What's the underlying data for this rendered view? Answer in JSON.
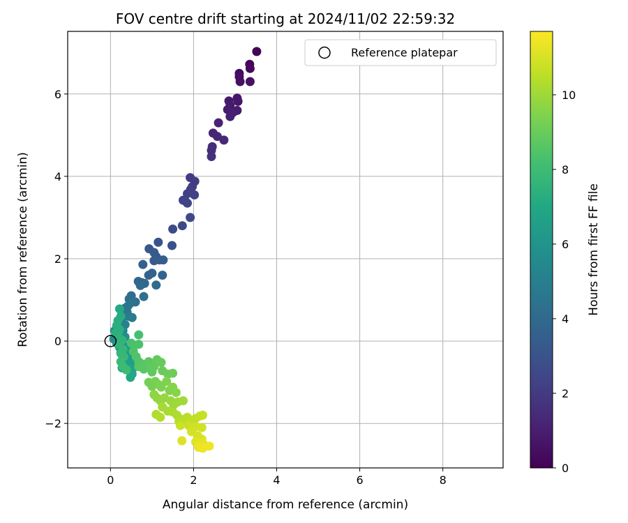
{
  "chart_data": {
    "type": "scatter",
    "title": "FOV centre drift starting at 2024/11/02 22:59:32",
    "xlabel": "Angular distance from reference (arcmin)",
    "ylabel": "Rotation from reference (arcmin)",
    "xlim": [
      -1.03,
      9.45
    ],
    "ylim": [
      -3.08,
      7.52
    ],
    "xticks": [
      0,
      2,
      4,
      6,
      8
    ],
    "yticks": [
      -2,
      0,
      2,
      4,
      6
    ],
    "xtick_labels": [
      "0",
      "2",
      "4",
      "6",
      "8"
    ],
    "ytick_labels": [
      "−2",
      "0",
      "2",
      "4",
      "6"
    ],
    "grid": true,
    "legend": {
      "position": "top-right",
      "entries": [
        "Reference platepar"
      ]
    },
    "reference_point": {
      "label": "Reference platepar",
      "x": 0,
      "y": 0,
      "marker": "open-circle"
    },
    "colorbar": {
      "label": "Hours from first FF file",
      "colormap": "viridis",
      "range": [
        0,
        11.7
      ],
      "ticks": [
        0,
        2,
        4,
        6,
        8,
        10
      ],
      "tick_labels": [
        "0",
        "2",
        "4",
        "6",
        "8",
        "10"
      ]
    },
    "points": [
      {
        "x": 3.52,
        "y": 7.03,
        "h": 0.1
      },
      {
        "x": 3.35,
        "y": 6.72,
        "h": 0.2
      },
      {
        "x": 3.36,
        "y": 6.62,
        "h": 0.3
      },
      {
        "x": 3.1,
        "y": 6.5,
        "h": 0.35
      },
      {
        "x": 3.1,
        "y": 6.42,
        "h": 0.45
      },
      {
        "x": 3.12,
        "y": 6.3,
        "h": 0.5
      },
      {
        "x": 3.36,
        "y": 6.3,
        "h": 0.55
      },
      {
        "x": 3.05,
        "y": 5.9,
        "h": 0.7
      },
      {
        "x": 3.07,
        "y": 5.82,
        "h": 0.75
      },
      {
        "x": 2.85,
        "y": 5.83,
        "h": 0.8
      },
      {
        "x": 2.88,
        "y": 5.72,
        "h": 0.85
      },
      {
        "x": 2.82,
        "y": 5.62,
        "h": 0.9
      },
      {
        "x": 3.05,
        "y": 5.6,
        "h": 0.95
      },
      {
        "x": 2.95,
        "y": 5.55,
        "h": 1.0
      },
      {
        "x": 2.88,
        "y": 5.45,
        "h": 1.05
      },
      {
        "x": 2.6,
        "y": 5.3,
        "h": 1.15
      },
      {
        "x": 2.47,
        "y": 5.05,
        "h": 1.25
      },
      {
        "x": 2.57,
        "y": 4.97,
        "h": 1.3
      },
      {
        "x": 2.73,
        "y": 4.88,
        "h": 1.35
      },
      {
        "x": 2.45,
        "y": 4.72,
        "h": 1.45
      },
      {
        "x": 2.43,
        "y": 4.63,
        "h": 1.5
      },
      {
        "x": 2.43,
        "y": 4.48,
        "h": 1.6
      },
      {
        "x": 1.92,
        "y": 3.97,
        "h": 2.0
      },
      {
        "x": 2.03,
        "y": 3.88,
        "h": 2.05
      },
      {
        "x": 1.97,
        "y": 3.75,
        "h": 2.1
      },
      {
        "x": 1.93,
        "y": 3.68,
        "h": 2.15
      },
      {
        "x": 1.85,
        "y": 3.58,
        "h": 2.2
      },
      {
        "x": 2.02,
        "y": 3.55,
        "h": 2.25
      },
      {
        "x": 1.75,
        "y": 3.42,
        "h": 2.3
      },
      {
        "x": 1.8,
        "y": 3.4,
        "h": 2.35
      },
      {
        "x": 1.85,
        "y": 3.35,
        "h": 2.4
      },
      {
        "x": 1.92,
        "y": 3.0,
        "h": 2.5
      },
      {
        "x": 1.73,
        "y": 2.8,
        "h": 2.6
      },
      {
        "x": 1.5,
        "y": 2.72,
        "h": 2.7
      },
      {
        "x": 1.48,
        "y": 2.32,
        "h": 2.9
      },
      {
        "x": 1.15,
        "y": 2.4,
        "h": 3.0
      },
      {
        "x": 0.93,
        "y": 2.24,
        "h": 3.2
      },
      {
        "x": 1.05,
        "y": 2.15,
        "h": 3.25
      },
      {
        "x": 1.1,
        "y": 2.05,
        "h": 3.3
      },
      {
        "x": 1.05,
        "y": 1.95,
        "h": 3.35
      },
      {
        "x": 1.18,
        "y": 1.97,
        "h": 3.4
      },
      {
        "x": 1.27,
        "y": 1.97,
        "h": 3.45
      },
      {
        "x": 0.78,
        "y": 1.86,
        "h": 3.55
      },
      {
        "x": 1.0,
        "y": 1.65,
        "h": 3.65
      },
      {
        "x": 0.92,
        "y": 1.6,
        "h": 3.7
      },
      {
        "x": 1.25,
        "y": 1.6,
        "h": 3.75
      },
      {
        "x": 0.67,
        "y": 1.45,
        "h": 3.85
      },
      {
        "x": 0.75,
        "y": 1.42,
        "h": 3.9
      },
      {
        "x": 0.82,
        "y": 1.4,
        "h": 3.95
      },
      {
        "x": 0.72,
        "y": 1.35,
        "h": 4.0
      },
      {
        "x": 1.1,
        "y": 1.36,
        "h": 4.05
      },
      {
        "x": 0.5,
        "y": 1.1,
        "h": 4.2
      },
      {
        "x": 0.45,
        "y": 1.02,
        "h": 4.25
      },
      {
        "x": 0.8,
        "y": 1.08,
        "h": 4.3
      },
      {
        "x": 0.6,
        "y": 0.95,
        "h": 4.35
      },
      {
        "x": 0.48,
        "y": 0.92,
        "h": 4.4
      },
      {
        "x": 0.42,
        "y": 0.85,
        "h": 4.5
      },
      {
        "x": 0.35,
        "y": 0.8,
        "h": 4.55
      },
      {
        "x": 0.4,
        "y": 0.7,
        "h": 4.6
      },
      {
        "x": 0.27,
        "y": 0.72,
        "h": 4.65
      },
      {
        "x": 0.32,
        "y": 0.65,
        "h": 4.7
      },
      {
        "x": 0.45,
        "y": 0.6,
        "h": 4.75
      },
      {
        "x": 0.3,
        "y": 0.58,
        "h": 4.8
      },
      {
        "x": 0.52,
        "y": 0.57,
        "h": 4.85
      },
      {
        "x": 0.22,
        "y": 0.5,
        "h": 4.95
      },
      {
        "x": 0.2,
        "y": 0.42,
        "h": 5.0
      },
      {
        "x": 0.35,
        "y": 0.4,
        "h": 5.05
      },
      {
        "x": 0.25,
        "y": 0.36,
        "h": 5.1
      },
      {
        "x": 0.15,
        "y": 0.3,
        "h": 5.2
      },
      {
        "x": 0.1,
        "y": 0.25,
        "h": 5.3
      },
      {
        "x": 0.3,
        "y": 0.25,
        "h": 5.35
      },
      {
        "x": 0.2,
        "y": 0.18,
        "h": 5.45
      },
      {
        "x": 0.12,
        "y": 0.12,
        "h": 5.55
      },
      {
        "x": 0.08,
        "y": 0.05,
        "h": 5.65
      },
      {
        "x": 0.25,
        "y": 0.08,
        "h": 5.7
      },
      {
        "x": 0.35,
        "y": 0.1,
        "h": 5.75
      },
      {
        "x": 0.15,
        "y": -0.05,
        "h": 5.85
      },
      {
        "x": 0.3,
        "y": -0.08,
        "h": 5.9
      },
      {
        "x": 0.22,
        "y": -0.15,
        "h": 6.0
      },
      {
        "x": 0.4,
        "y": -0.18,
        "h": 6.05
      },
      {
        "x": 0.25,
        "y": -0.28,
        "h": 6.15
      },
      {
        "x": 0.35,
        "y": -0.32,
        "h": 6.2
      },
      {
        "x": 0.45,
        "y": -0.35,
        "h": 6.25
      },
      {
        "x": 0.3,
        "y": -0.42,
        "h": 6.35
      },
      {
        "x": 0.4,
        "y": -0.45,
        "h": 6.4
      },
      {
        "x": 0.5,
        "y": -0.48,
        "h": 6.45
      },
      {
        "x": 0.3,
        "y": -0.55,
        "h": 6.55
      },
      {
        "x": 0.42,
        "y": -0.6,
        "h": 6.6
      },
      {
        "x": 0.28,
        "y": -0.65,
        "h": 6.65
      },
      {
        "x": 0.55,
        "y": -0.65,
        "h": 6.7
      },
      {
        "x": 0.45,
        "y": -0.72,
        "h": 6.8
      },
      {
        "x": 0.52,
        "y": -0.8,
        "h": 6.9
      },
      {
        "x": 0.48,
        "y": -0.88,
        "h": 7.0
      },
      {
        "x": 0.22,
        "y": 0.78,
        "h": 7.1
      },
      {
        "x": 0.25,
        "y": 0.6,
        "h": 7.2
      },
      {
        "x": 0.18,
        "y": 0.5,
        "h": 7.25
      },
      {
        "x": 0.15,
        "y": 0.38,
        "h": 7.3
      },
      {
        "x": 0.22,
        "y": 0.28,
        "h": 7.35
      },
      {
        "x": 0.12,
        "y": 0.2,
        "h": 7.4
      },
      {
        "x": 0.18,
        "y": 0.15,
        "h": 7.45
      },
      {
        "x": 0.28,
        "y": 0.02,
        "h": 7.55
      },
      {
        "x": 0.2,
        "y": -0.08,
        "h": 7.6
      },
      {
        "x": 0.3,
        "y": -0.2,
        "h": 7.7
      },
      {
        "x": 0.25,
        "y": -0.3,
        "h": 7.75
      },
      {
        "x": 0.32,
        "y": -0.38,
        "h": 7.8
      },
      {
        "x": 0.25,
        "y": -0.5,
        "h": 7.9
      },
      {
        "x": 0.3,
        "y": -0.62,
        "h": 7.95
      },
      {
        "x": 0.38,
        "y": -0.7,
        "h": 8.0
      },
      {
        "x": 0.68,
        "y": 0.15,
        "h": 8.2
      },
      {
        "x": 0.5,
        "y": -0.05,
        "h": 8.25
      },
      {
        "x": 0.58,
        "y": -0.1,
        "h": 8.3
      },
      {
        "x": 0.68,
        "y": -0.08,
        "h": 8.35
      },
      {
        "x": 0.55,
        "y": -0.25,
        "h": 8.4
      },
      {
        "x": 0.62,
        "y": -0.38,
        "h": 8.45
      },
      {
        "x": 0.68,
        "y": -0.5,
        "h": 8.5
      },
      {
        "x": 0.75,
        "y": -0.55,
        "h": 8.55
      },
      {
        "x": 0.68,
        "y": -0.62,
        "h": 8.6
      },
      {
        "x": 0.8,
        "y": -0.68,
        "h": 8.65
      },
      {
        "x": 0.92,
        "y": -0.5,
        "h": 8.7
      },
      {
        "x": 0.95,
        "y": -0.6,
        "h": 8.75
      },
      {
        "x": 1.0,
        "y": -0.75,
        "h": 8.8
      },
      {
        "x": 1.05,
        "y": -0.62,
        "h": 8.85
      },
      {
        "x": 1.12,
        "y": -0.45,
        "h": 8.9
      },
      {
        "x": 1.22,
        "y": -0.52,
        "h": 8.95
      },
      {
        "x": 1.25,
        "y": -0.72,
        "h": 9.0
      },
      {
        "x": 1.38,
        "y": -0.8,
        "h": 9.05
      },
      {
        "x": 1.5,
        "y": -0.78,
        "h": 9.1
      },
      {
        "x": 0.92,
        "y": -1.0,
        "h": 9.2
      },
      {
        "x": 1.0,
        "y": -1.1,
        "h": 9.25
      },
      {
        "x": 1.08,
        "y": -0.98,
        "h": 9.3
      },
      {
        "x": 1.15,
        "y": -1.05,
        "h": 9.35
      },
      {
        "x": 1.22,
        "y": -1.12,
        "h": 9.4
      },
      {
        "x": 1.35,
        "y": -0.98,
        "h": 9.45
      },
      {
        "x": 1.42,
        "y": -1.2,
        "h": 9.5
      },
      {
        "x": 1.5,
        "y": -1.12,
        "h": 9.55
      },
      {
        "x": 1.58,
        "y": -1.25,
        "h": 9.6
      },
      {
        "x": 1.05,
        "y": -1.3,
        "h": 9.7
      },
      {
        "x": 1.12,
        "y": -1.38,
        "h": 9.75
      },
      {
        "x": 1.2,
        "y": -1.45,
        "h": 9.8
      },
      {
        "x": 1.3,
        "y": -1.38,
        "h": 9.85
      },
      {
        "x": 1.45,
        "y": -1.45,
        "h": 9.9
      },
      {
        "x": 1.52,
        "y": -1.55,
        "h": 9.95
      },
      {
        "x": 1.62,
        "y": -1.48,
        "h": 10.0
      },
      {
        "x": 1.75,
        "y": -1.45,
        "h": 10.05
      },
      {
        "x": 1.25,
        "y": -1.6,
        "h": 10.1
      },
      {
        "x": 1.38,
        "y": -1.7,
        "h": 10.15
      },
      {
        "x": 1.5,
        "y": -1.72,
        "h": 10.2
      },
      {
        "x": 1.6,
        "y": -1.8,
        "h": 10.25
      },
      {
        "x": 1.1,
        "y": -1.78,
        "h": 10.3
      },
      {
        "x": 1.2,
        "y": -1.85,
        "h": 10.35
      },
      {
        "x": 1.65,
        "y": -1.95,
        "h": 10.4
      },
      {
        "x": 1.75,
        "y": -1.9,
        "h": 10.45
      },
      {
        "x": 1.85,
        "y": -1.85,
        "h": 10.5
      },
      {
        "x": 1.95,
        "y": -1.95,
        "h": 10.55
      },
      {
        "x": 2.05,
        "y": -1.88,
        "h": 10.6
      },
      {
        "x": 2.15,
        "y": -1.82,
        "h": 10.65
      },
      {
        "x": 2.22,
        "y": -1.8,
        "h": 10.7
      },
      {
        "x": 1.68,
        "y": -2.05,
        "h": 10.75
      },
      {
        "x": 1.88,
        "y": -2.05,
        "h": 10.8
      },
      {
        "x": 2.05,
        "y": -2.08,
        "h": 10.85
      },
      {
        "x": 2.2,
        "y": -2.1,
        "h": 10.9
      },
      {
        "x": 1.95,
        "y": -2.2,
        "h": 10.95
      },
      {
        "x": 2.1,
        "y": -2.3,
        "h": 11.0
      },
      {
        "x": 2.2,
        "y": -2.38,
        "h": 11.05
      },
      {
        "x": 1.72,
        "y": -2.42,
        "h": 11.1
      },
      {
        "x": 2.05,
        "y": -2.45,
        "h": 11.15
      },
      {
        "x": 2.15,
        "y": -2.5,
        "h": 11.2
      },
      {
        "x": 2.22,
        "y": -2.48,
        "h": 11.25
      },
      {
        "x": 2.3,
        "y": -2.55,
        "h": 11.3
      },
      {
        "x": 2.12,
        "y": -2.58,
        "h": 11.35
      },
      {
        "x": 2.22,
        "y": -2.6,
        "h": 11.4
      },
      {
        "x": 2.38,
        "y": -2.55,
        "h": 11.45
      }
    ]
  }
}
